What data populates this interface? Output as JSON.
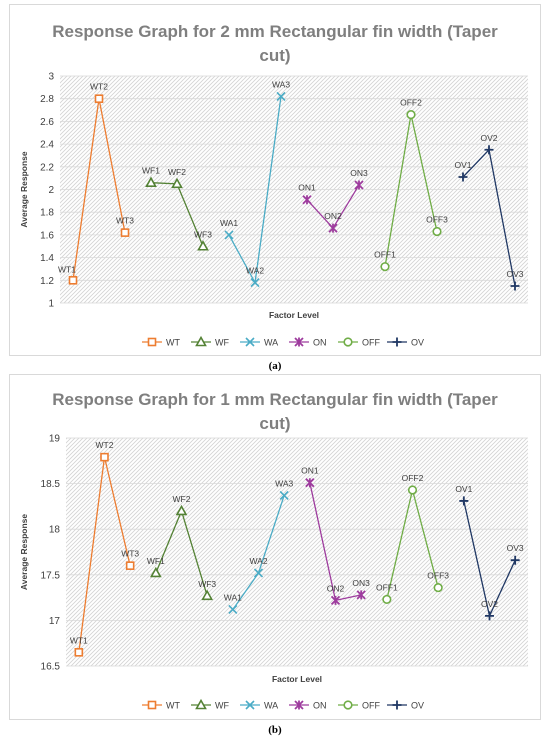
{
  "captions": [
    "(a)",
    "(b)"
  ],
  "chart_data": [
    {
      "type": "line",
      "title_lines": [
        "Response Graph for 2 mm Rectangular fin width (Taper",
        "cut)"
      ],
      "xlabel": "Factor Level",
      "ylabel": "Average Response",
      "ylim": [
        1,
        3
      ],
      "yticks": [
        "1",
        "1.2",
        "1.4",
        "1.6",
        "1.8",
        "2",
        "2.2",
        "2.4",
        "2.6",
        "2.8",
        "3"
      ],
      "grid": true,
      "legend_position": "bottom",
      "series": [
        {
          "name": "WT",
          "color": "#ED7D31",
          "marker": "square",
          "labels": [
            "WT1",
            "WT2",
            "WT3"
          ],
          "values": [
            1.2,
            2.8,
            1.62
          ]
        },
        {
          "name": "WF",
          "color": "#548235",
          "marker": "triangle",
          "labels": [
            "WF1",
            "WF2",
            "WF3"
          ],
          "values": [
            2.06,
            2.05,
            1.5
          ]
        },
        {
          "name": "WA",
          "color": "#4BACC6",
          "marker": "x",
          "labels": [
            "WA1",
            "WA2",
            "WA3"
          ],
          "values": [
            1.6,
            1.18,
            2.82
          ]
        },
        {
          "name": "ON",
          "color": "#9E3C9E",
          "marker": "star",
          "labels": [
            "ON1",
            "ON2",
            "ON3"
          ],
          "values": [
            1.91,
            1.66,
            2.04
          ]
        },
        {
          "name": "OFF",
          "color": "#70AD47",
          "marker": "circle",
          "labels": [
            "OFF1",
            "OFF2",
            "OFF3"
          ],
          "values": [
            1.32,
            2.66,
            1.63
          ]
        },
        {
          "name": "OV",
          "color": "#203864",
          "marker": "plus",
          "labels": [
            "OV1",
            "OV2",
            "OV3"
          ],
          "values": [
            2.11,
            2.35,
            1.15
          ]
        }
      ]
    },
    {
      "type": "line",
      "title_lines": [
        "Response Graph for 1 mm Rectangular fin width (Taper",
        "cut)"
      ],
      "xlabel": "Factor Level",
      "ylabel": "Average Response",
      "ylim": [
        16.5,
        19
      ],
      "yticks": [
        "16.5",
        "17",
        "17.5",
        "18",
        "18.5",
        "19"
      ],
      "grid": true,
      "legend_position": "bottom",
      "series": [
        {
          "name": "WT",
          "color": "#ED7D31",
          "marker": "square",
          "labels": [
            "WT1",
            "WT2",
            "WT3"
          ],
          "values": [
            16.65,
            18.79,
            17.6
          ]
        },
        {
          "name": "WF",
          "color": "#548235",
          "marker": "triangle",
          "labels": [
            "WF1",
            "WF2",
            "WF3"
          ],
          "values": [
            17.52,
            18.2,
            17.27
          ]
        },
        {
          "name": "WA",
          "color": "#4BACC6",
          "marker": "x",
          "labels": [
            "WA1",
            "WA2",
            "WA3"
          ],
          "values": [
            17.12,
            17.52,
            18.37
          ]
        },
        {
          "name": "ON",
          "color": "#9E3C9E",
          "marker": "star",
          "labels": [
            "ON1",
            "ON2",
            "ON3"
          ],
          "values": [
            18.51,
            17.22,
            17.28
          ]
        },
        {
          "name": "OFF",
          "color": "#70AD47",
          "marker": "circle",
          "labels": [
            "OFF1",
            "OFF2",
            "OFF3"
          ],
          "values": [
            17.23,
            18.43,
            17.36
          ]
        },
        {
          "name": "OV",
          "color": "#203864",
          "marker": "plus",
          "labels": [
            "OV1",
            "OV2",
            "OV3"
          ],
          "values": [
            18.31,
            17.05,
            17.66
          ]
        }
      ]
    }
  ]
}
